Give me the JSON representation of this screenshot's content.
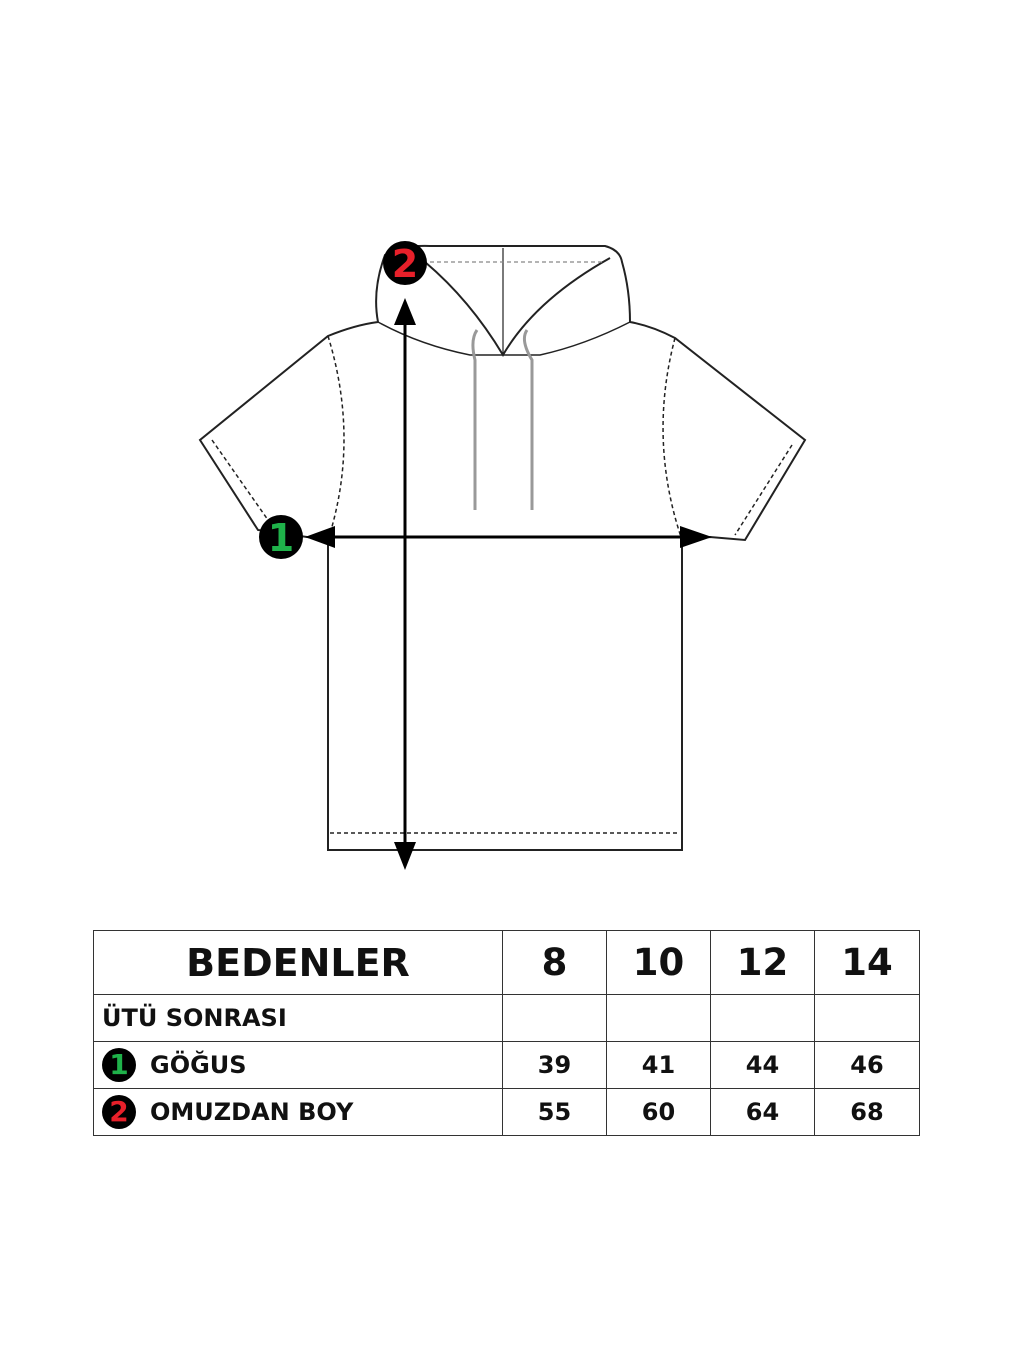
{
  "diagram": {
    "markers": [
      {
        "number": "1",
        "color": "#1fb24a"
      },
      {
        "number": "2",
        "color": "#e8202a"
      }
    ]
  },
  "table": {
    "header": "BEDENLER",
    "sizes": [
      "8",
      "10",
      "12",
      "14"
    ],
    "subheader": "ÜTÜ SONRASI",
    "rows": [
      {
        "marker": "1",
        "label": "GÖĞUS",
        "values": [
          "39",
          "41",
          "44",
          "46"
        ]
      },
      {
        "marker": "2",
        "label": "OMUZDAN BOY",
        "values": [
          "55",
          "60",
          "64",
          "68"
        ]
      }
    ]
  },
  "colors": {
    "marker1": "#1fb24a",
    "marker2": "#e8202a",
    "line": "#111111"
  }
}
